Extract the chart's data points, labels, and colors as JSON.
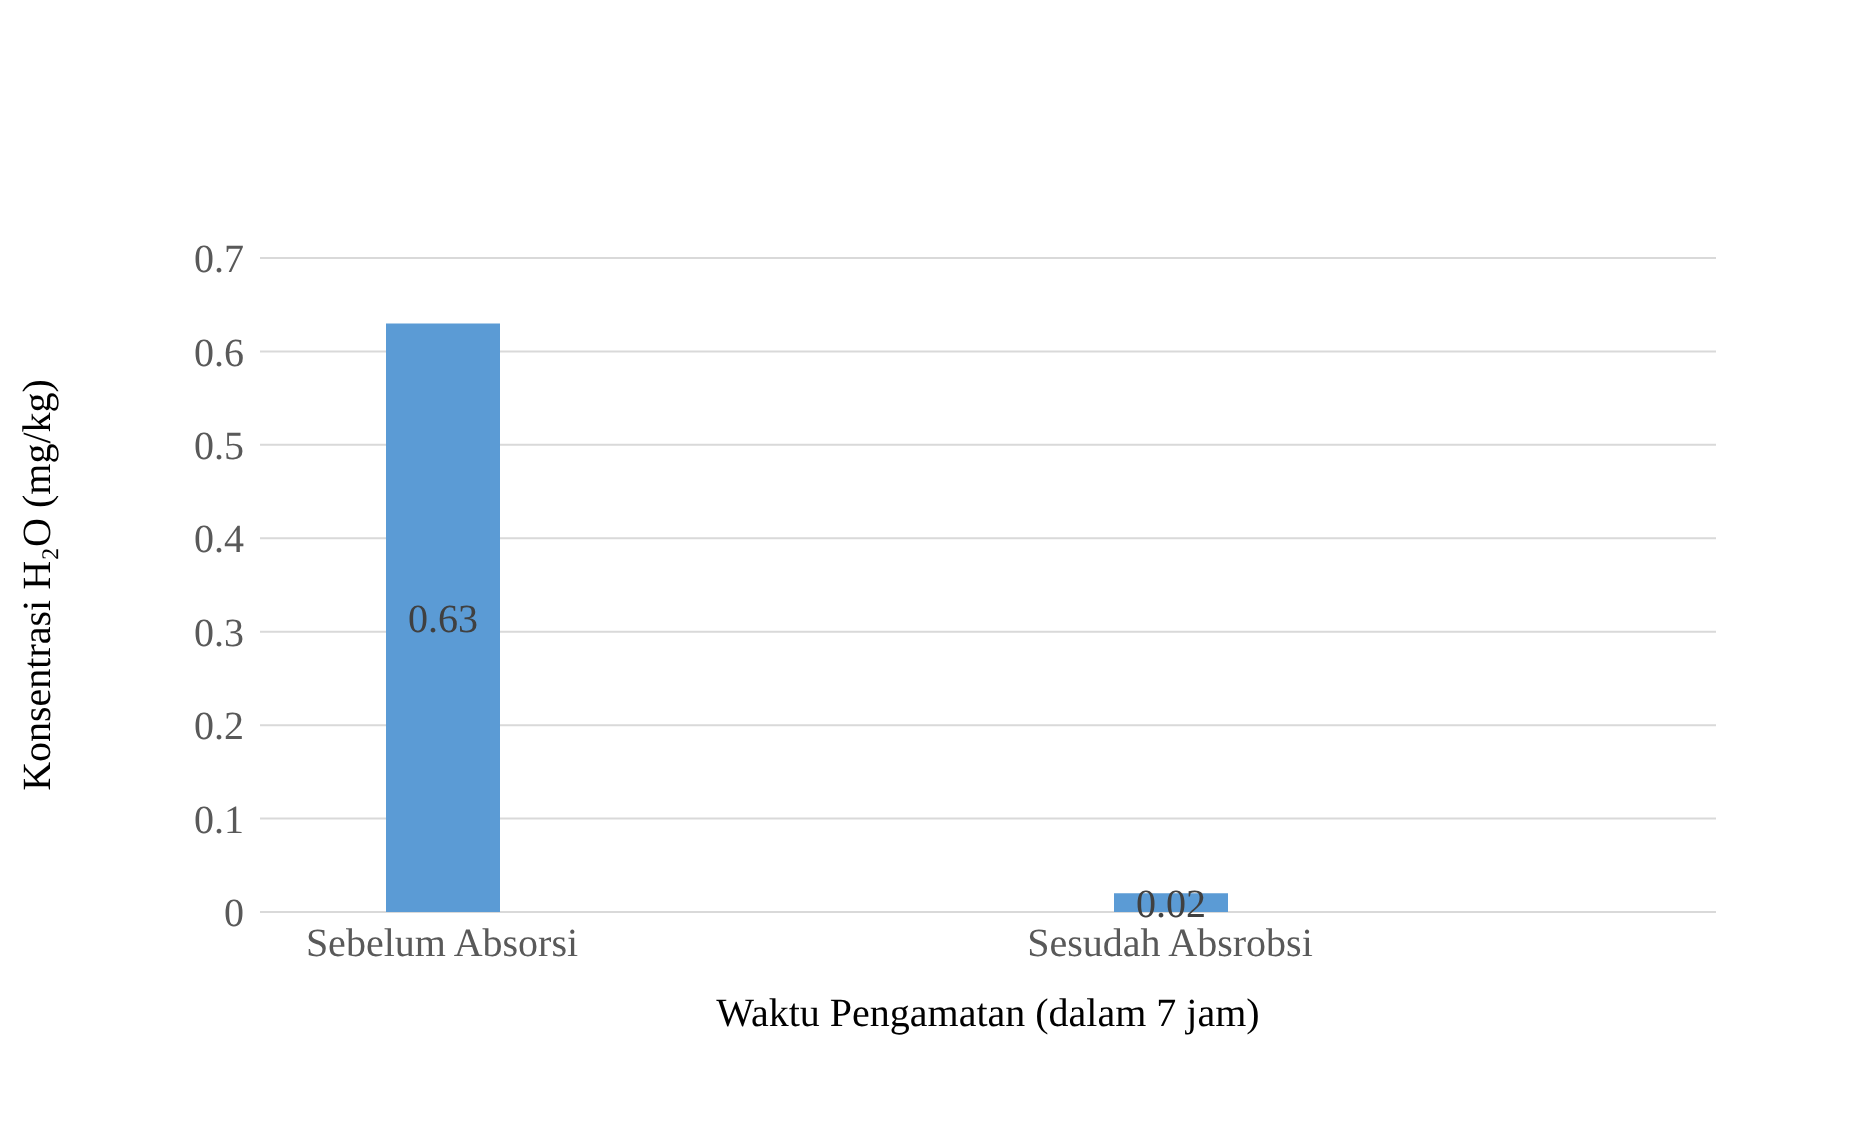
{
  "chart_data": {
    "type": "bar",
    "xlabel": "Waktu Pengamatan (dalam 7 jam)",
    "ylabel": "Konsentrasi H₂O (mg/kg)",
    "categories": [
      "Sebelum Absorsi",
      "Sesudah Absrobsi"
    ],
    "values": [
      0.63,
      0.02
    ],
    "color": "#5b9bd5",
    "ylim": [
      0,
      0.7
    ],
    "yticks": [
      0,
      0.1,
      0.2,
      0.3,
      0.4,
      0.5,
      0.6,
      0.7
    ],
    "grid": "y",
    "data_labels": true
  }
}
